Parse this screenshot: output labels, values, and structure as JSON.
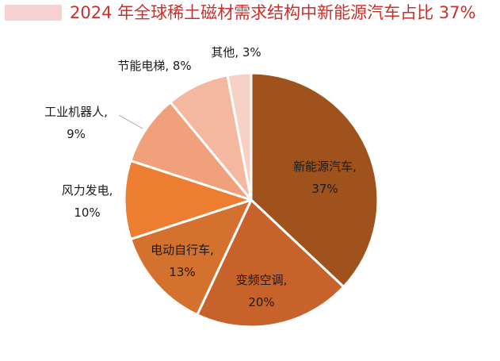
{
  "header": {
    "watermark": "",
    "title": "2024 年全球稀土磁材需求结构中新能源汽车占比 37%"
  },
  "colors": {
    "title": "#c9302c",
    "slices": [
      "#a0521c",
      "#c8622b",
      "#d5712f",
      "#ed7d31",
      "#f0a07a",
      "#f4b8a0",
      "#f7d2c4"
    ]
  },
  "chart_data": {
    "type": "pie",
    "title": "2024 年全球稀土磁材需求结构中新能源汽车占比 37%",
    "start_angle": "12 o'clock, clockwise",
    "slices": [
      {
        "name": "新能源汽车",
        "value": 37,
        "label": "新能源汽车,",
        "pct": "37%"
      },
      {
        "name": "变频空调",
        "value": 20,
        "label": "变频空调,",
        "pct": "20%"
      },
      {
        "name": "电动自行车",
        "value": 13,
        "label": "电动自行车,",
        "pct": "13%"
      },
      {
        "name": "风力发电",
        "value": 10,
        "label": "风力发电,",
        "pct": "10%"
      },
      {
        "name": "工业机器人",
        "value": 9,
        "label": "工业机器人,",
        "pct": "9%"
      },
      {
        "name": "节能电梯",
        "value": 8,
        "label": "节能电梯, 8%",
        "pct": ""
      },
      {
        "name": "其他",
        "value": 3,
        "label": "其他, 3%",
        "pct": ""
      }
    ]
  }
}
